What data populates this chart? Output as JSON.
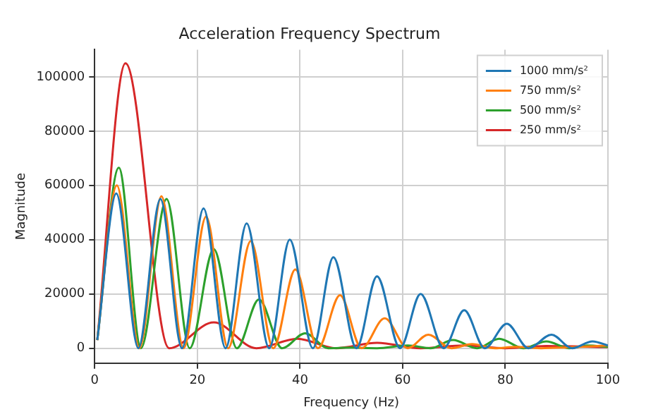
{
  "chart_data": {
    "type": "line",
    "title": "Acceleration Frequency Spectrum",
    "xlabel": "Frequency (Hz)",
    "ylabel": "Magnitude",
    "xlim": [
      0,
      100
    ],
    "xticks": [
      0,
      20,
      40,
      60,
      80,
      100
    ],
    "ylim": [
      -5500,
      110000
    ],
    "yticks": [
      0,
      20000,
      40000,
      60000,
      80000,
      100000
    ],
    "grid": true,
    "legend": "top right",
    "marker": "none",
    "line_style": "solid",
    "series": [
      {
        "name": "1000 mm/s²",
        "color": "#1f77b4",
        "x": [
          0.5,
          4.2,
          8.5,
          12.8,
          17,
          21.2,
          25.5,
          29.6,
          34,
          38,
          42.5,
          46.5,
          51,
          55,
          59.5,
          63.5,
          68,
          72,
          76,
          80.3,
          84.5,
          89,
          93,
          97,
          100
        ],
        "values": [
          3000,
          57000,
          0,
          55000,
          0,
          51500,
          0,
          46000,
          0,
          40000,
          0,
          33500,
          0,
          26500,
          0,
          20000,
          0,
          14000,
          0,
          9000,
          0,
          5000,
          0,
          2500,
          1000
        ]
      },
      {
        "name": "750 mm/s²",
        "color": "#ff7f0e",
        "x": [
          0.5,
          4.3,
          8.7,
          13,
          17.3,
          21.7,
          26,
          30.4,
          34.8,
          39.1,
          43.5,
          47.8,
          52,
          56.5,
          61,
          65,
          69.5,
          73.5,
          78,
          82,
          87,
          92,
          100
        ],
        "values": [
          3000,
          60000,
          0,
          56000,
          0,
          48500,
          0,
          39500,
          0,
          29000,
          0,
          19500,
          0,
          11000,
          0,
          5000,
          0,
          1500,
          0,
          500,
          0,
          300,
          1000
        ]
      },
      {
        "name": "500 mm/s²",
        "color": "#2ca02c",
        "x": [
          0.5,
          4.7,
          9,
          14,
          18.5,
          23.2,
          27.7,
          32,
          36.5,
          41,
          45.5,
          50,
          55,
          61,
          65.5,
          69.8,
          74.5,
          78.8,
          83.5,
          88,
          92.5,
          96,
          100
        ],
        "values": [
          3000,
          66500,
          0,
          55000,
          0,
          36500,
          0,
          18000,
          0,
          5500,
          0,
          200,
          0,
          1000,
          0,
          3000,
          0,
          3500,
          0,
          2500,
          0,
          1000,
          500
        ]
      },
      {
        "name": "250 mm/s²",
        "color": "#d62728",
        "x": [
          0.5,
          6,
          14.5,
          23.2,
          31.5,
          39.5,
          47,
          55,
          63.5,
          72,
          80,
          88,
          100
        ],
        "values": [
          3000,
          105000,
          0,
          9500,
          0,
          3500,
          0,
          2000,
          0,
          1000,
          0,
          800,
          400
        ]
      }
    ]
  }
}
